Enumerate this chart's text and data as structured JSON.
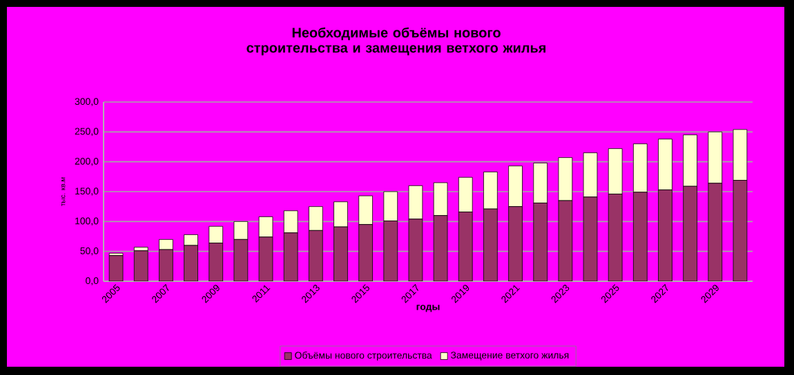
{
  "chart_data": {
    "type": "bar",
    "stacked": true,
    "title": "Необходимые объёмы нового строительства и замещения ветхого жилья",
    "xlabel": "годы",
    "ylabel": "тыс. кв.м",
    "categories": [
      "2005",
      null,
      "2007",
      null,
      "2009",
      null,
      "2011",
      null,
      "2013",
      null,
      "2015",
      null,
      "2017",
      null,
      "2019",
      null,
      "2021",
      null,
      "2023",
      null,
      "2025",
      null,
      "2027",
      null,
      "2029",
      null
    ],
    "series": [
      {
        "name": "Объёмы нового строительства",
        "color": "#993366",
        "values": [
          43,
          51,
          53,
          60,
          64,
          70,
          74,
          81,
          85,
          91,
          95,
          101,
          104,
          110,
          116,
          121,
          125,
          131,
          135,
          141,
          146,
          149,
          153,
          159,
          164,
          169
        ]
      },
      {
        "name": "Замещение ветхого жилья",
        "color": "#ffffcc",
        "values": [
          4,
          6,
          17,
          18,
          28,
          30,
          34,
          37,
          40,
          42,
          48,
          49,
          56,
          55,
          58,
          62,
          68,
          67,
          72,
          74,
          76,
          81,
          85,
          86,
          86,
          85
        ]
      }
    ],
    "ylim": [
      0,
      300
    ],
    "yticks": [
      {
        "value": 0,
        "label": "0,0"
      },
      {
        "value": 50,
        "label": "50,0"
      },
      {
        "value": 100,
        "label": "100,0"
      },
      {
        "value": 150,
        "label": "150,0"
      },
      {
        "value": 200,
        "label": "200,0"
      },
      {
        "value": 250,
        "label": "250,0"
      },
      {
        "value": 300,
        "label": "300,0"
      }
    ],
    "grid": "y",
    "legend": "bottom"
  }
}
